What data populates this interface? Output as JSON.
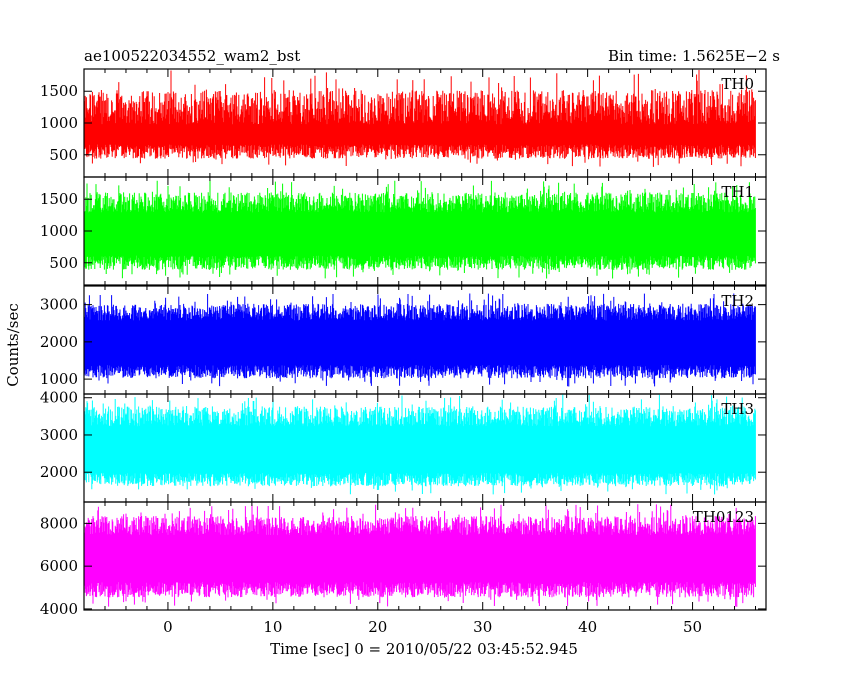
{
  "header": {
    "title": "ae100522034552_wam2_bst",
    "bin_time": "Bin time: 1.5625E−2 s"
  },
  "chart_data": [
    {
      "type": "line",
      "name": "TH0",
      "color": "#ff0000",
      "ylim": [
        150,
        1850
      ],
      "yticks": [
        500,
        1000,
        1500
      ],
      "typical_range": [
        550,
        1250
      ],
      "extreme_range": [
        300,
        1850
      ],
      "xlim": [
        -8,
        57
      ],
      "x_extent": [
        -8,
        56
      ],
      "xticks": [
        0,
        10,
        20,
        30,
        40,
        50
      ]
    },
    {
      "type": "line",
      "name": "TH1",
      "color": "#00ff00",
      "ylim": [
        150,
        1850
      ],
      "yticks": [
        500,
        1000,
        1500
      ],
      "typical_range": [
        500,
        1450
      ],
      "extreme_range": [
        250,
        1800
      ],
      "xlim": [
        -8,
        57
      ],
      "x_extent": [
        -8,
        56
      ],
      "xticks": [
        0,
        10,
        20,
        30,
        40,
        50
      ]
    },
    {
      "type": "line",
      "name": "TH2",
      "color": "#0000ff",
      "ylim": [
        600,
        3500
      ],
      "yticks": [
        1000,
        2000,
        3000
      ],
      "typical_range": [
        1200,
        2800
      ],
      "extreme_range": [
        800,
        3300
      ],
      "xlim": [
        -8,
        57
      ],
      "x_extent": [
        -8,
        56
      ],
      "xticks": [
        0,
        10,
        20,
        30,
        40,
        50
      ]
    },
    {
      "type": "line",
      "name": "TH3",
      "color": "#00ffff",
      "ylim": [
        1200,
        4100
      ],
      "yticks": [
        2000,
        3000,
        4000
      ],
      "typical_range": [
        1800,
        3500
      ],
      "extreme_range": [
        1400,
        4100
      ],
      "xlim": [
        -8,
        57
      ],
      "x_extent": [
        -8,
        56
      ],
      "xticks": [
        0,
        10,
        20,
        30,
        40,
        50
      ]
    },
    {
      "type": "line",
      "name": "TH0123",
      "color": "#ff00ff",
      "ylim": [
        3950,
        9000
      ],
      "yticks": [
        4000,
        6000,
        8000
      ],
      "typical_range": [
        4900,
        7900
      ],
      "extreme_range": [
        4100,
        8900
      ],
      "xlim": [
        -8,
        57
      ],
      "x_extent": [
        -8,
        56
      ],
      "xticks": [
        0,
        10,
        20,
        30,
        40,
        50
      ]
    }
  ],
  "axes": {
    "ylabel": "Counts/sec",
    "xlabel": "Time [sec] 0 = 2010/05/22 03:45:52.945"
  }
}
